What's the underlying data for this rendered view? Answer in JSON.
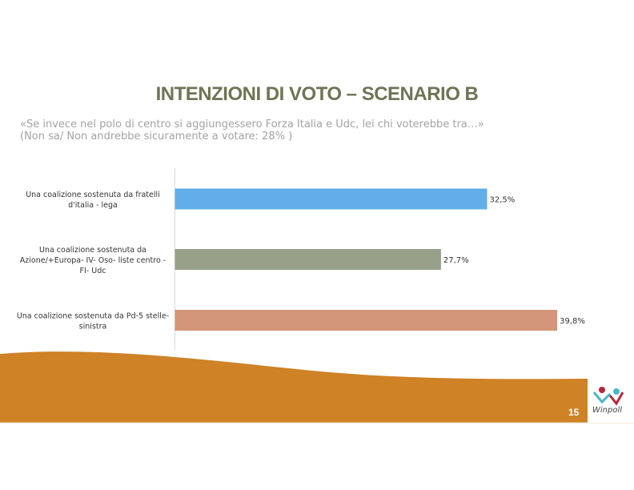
{
  "title": "INTENZIONI DI VOTO – SCENARIO B",
  "subtitle_line1": "«Se invece nel polo di centro si aggiungessero Forza Italia e Udc, lei chi voterebbe tra…»",
  "subtitle_line2": "(Non sa/ Non andrebbe sicuramente a votare: 28% )",
  "page_number": "15",
  "logo_text": "Winpoll",
  "chart_data": {
    "type": "bar",
    "orientation": "horizontal",
    "categories": [
      [
        "Una coalizione sostenuta da fratelli",
        "d'italia - lega"
      ],
      [
        "Una coalizione sostenuta da",
        "Azione/+Europa- IV- Oso- liste centro -",
        "FI- Udc"
      ],
      [
        "Una coalizione sostenuta da Pd-5 stelle-",
        "sinistra"
      ]
    ],
    "values": [
      32.5,
      27.7,
      39.8
    ],
    "value_labels": [
      "32,5%",
      "27,7%",
      "39,8%"
    ],
    "colors": [
      "#62aeea",
      "#97a089",
      "#d3967a"
    ],
    "xlim": [
      0,
      42
    ],
    "grid": false
  }
}
